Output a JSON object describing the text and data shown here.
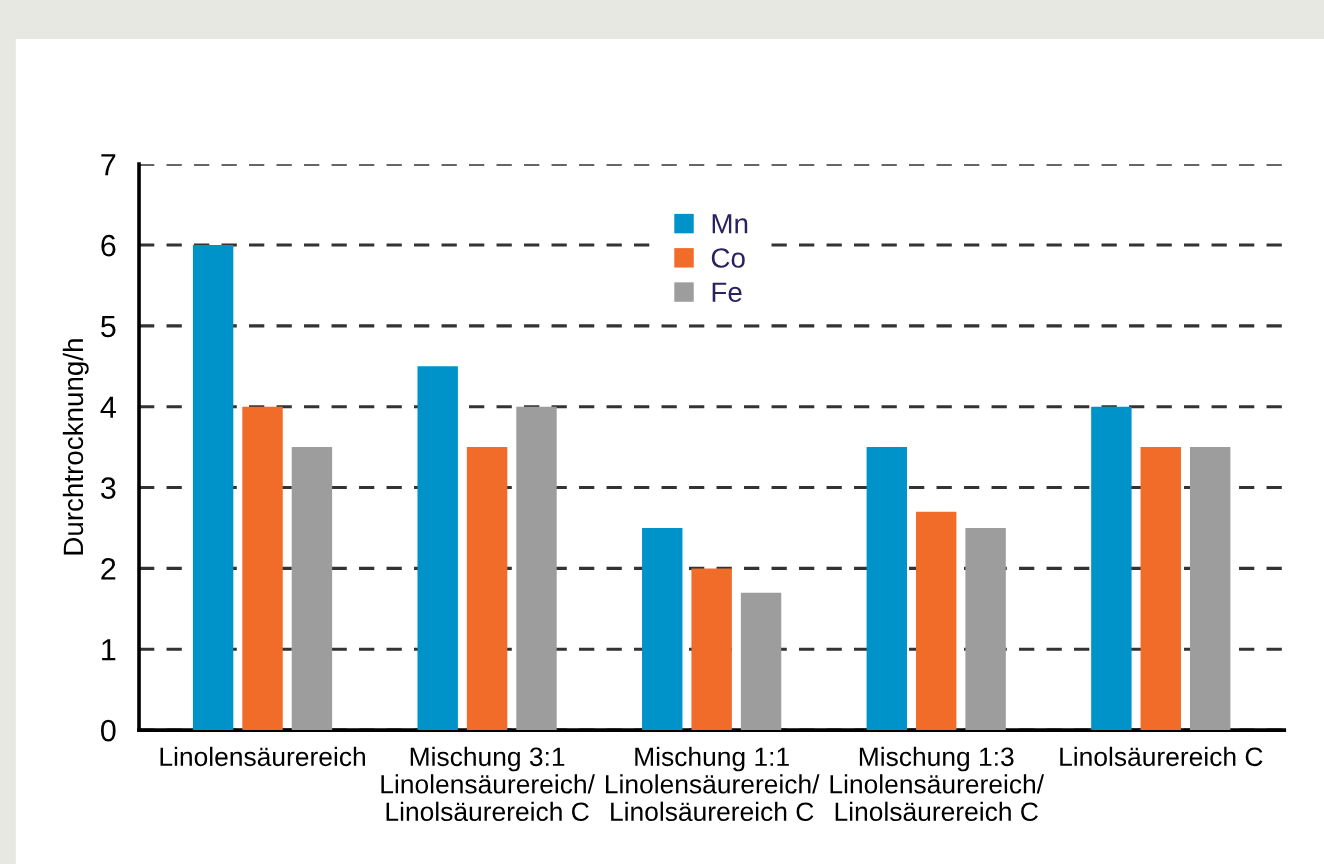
{
  "chart_data": {
    "type": "bar",
    "ylabel": "Durchtrocknung/h",
    "categories": [
      "Linolensäurereich",
      "Mischung 3:1\nLinolensäurereich/\nLinolsäurereich C",
      "Mischung 1:1\nLinolensäurereich/\nLinolsäurereich C",
      "Mischung 1:3\nLinolensäurereich/\nLinolsäurereich C",
      "Linolsäurereich C"
    ],
    "series": [
      {
        "name": "Mn",
        "color": "#0093c9",
        "values": [
          6,
          4.5,
          2.5,
          3.5,
          4
        ]
      },
      {
        "name": "Co",
        "color": "#f06c28",
        "values": [
          4,
          3.5,
          2,
          2.7,
          3.5
        ]
      },
      {
        "name": "Fe",
        "color": "#9d9d9d",
        "values": [
          3.5,
          4,
          1.7,
          2.5,
          3.5
        ]
      }
    ],
    "ylim": [
      0,
      7
    ],
    "yticks": [
      0,
      1,
      2,
      3,
      4,
      5,
      6,
      7
    ],
    "grid": "y",
    "legend": "top"
  }
}
